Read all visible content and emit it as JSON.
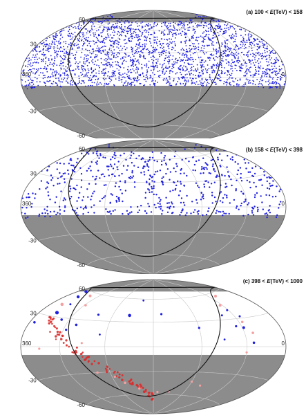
{
  "colors": {
    "background": "#ffffff",
    "mask": "#8c8c8c",
    "grid": "#c8c8c8",
    "outline": "#555555",
    "galactic_plane": "#111111",
    "event_blue": "#2020e0",
    "event_red": "#dd2a2a",
    "event_pink": "#f4a0a0",
    "galactic_red": "#c02020"
  },
  "chart_data": [
    {
      "type": "scatter",
      "projection": "hammer-aitoff",
      "title_parts": {
        "prefix": "(a) 100 < ",
        "var": "E",
        "unit": "(TeV)",
        "suffix": " < 158"
      },
      "lat_labels": [
        "60",
        "30",
        "-30",
        "-60"
      ],
      "lon_labels": [
        "360",
        "0"
      ],
      "fov_dec_range": [
        -10,
        71
      ],
      "marker_color": "blue",
      "n_events": 2600,
      "seed": 11,
      "marker_size": 0.9,
      "grid": true
    },
    {
      "type": "scatter",
      "projection": "hammer-aitoff",
      "title_parts": {
        "prefix": "(b) 158 < ",
        "var": "E",
        "unit": "(TeV)",
        "suffix": " < 398"
      },
      "lat_labels": [
        "60",
        "30",
        "-30",
        "-60"
      ],
      "lon_labels": [
        "360",
        "0"
      ],
      "fov_dec_range": [
        -10,
        71
      ],
      "marker_color": "blue",
      "n_events": 620,
      "seed": 23,
      "marker_size": 1.2,
      "grid": true
    },
    {
      "type": "scatter",
      "projection": "hammer-aitoff",
      "title_parts": {
        "prefix": "(c) 398 < ",
        "var": "E",
        "unit": "(TeV)",
        "suffix": " < 1000"
      },
      "lat_labels": [
        "60",
        "30",
        "-30",
        "-60"
      ],
      "lon_labels": [
        "360",
        "0"
      ],
      "fov_dec_range": [
        -10,
        71
      ],
      "grid": true,
      "events_blue": [
        {
          "ra": 345,
          "dec": 58,
          "s": 2.2
        },
        {
          "ra": 336,
          "dec": 52,
          "s": 2.2
        },
        {
          "ra": 330,
          "dec": 34,
          "s": 2.6
        },
        {
          "ra": 312,
          "dec": 28,
          "s": 1.8
        },
        {
          "ra": 296,
          "dec": 18,
          "s": 1.6
        },
        {
          "ra": 285,
          "dec": 24,
          "s": 1.8
        },
        {
          "ra": 262,
          "dec": 37,
          "s": 1.6
        },
        {
          "ra": 248,
          "dec": 14,
          "s": 1.4
        },
        {
          "ra": 215,
          "dec": 38,
          "s": 2.3
        },
        {
          "ra": 168,
          "dec": 40,
          "s": 1.6
        },
        {
          "ra": 120,
          "dec": 22,
          "s": 1.6
        },
        {
          "ra": 78,
          "dec": 35,
          "s": 1.5
        },
        {
          "ra": 68,
          "dec": 22,
          "s": 1.6
        },
        {
          "ra": 62,
          "dec": 40,
          "s": 1.5
        },
        {
          "ra": 58,
          "dec": 20,
          "s": 2.0
        },
        {
          "ra": 52,
          "dec": 32,
          "s": 1.5
        },
        {
          "ra": 50,
          "dec": 4,
          "s": 1.8
        },
        {
          "ra": 90,
          "dec": 8,
          "s": 1.4
        },
        {
          "ra": 352,
          "dec": 22,
          "s": 1.8
        },
        {
          "ra": 326,
          "dec": 44,
          "s": 1.5
        },
        {
          "ra": 200,
          "dec": 58,
          "s": 1.4
        }
      ],
      "events_pink": [
        {
          "ra": 340,
          "dec": 42,
          "s": 2.3
        },
        {
          "ra": 318,
          "dec": 56,
          "s": 2.0
        },
        {
          "ra": 298,
          "dec": 46,
          "s": 1.8
        },
        {
          "ra": 270,
          "dec": 4,
          "s": 1.6
        },
        {
          "ra": 258,
          "dec": -30,
          "s": 1.8
        },
        {
          "ra": 236,
          "dec": -36,
          "s": 1.6
        },
        {
          "ra": 225,
          "dec": -44,
          "s": 1.8
        },
        {
          "ra": 205,
          "dec": -52,
          "s": 1.8
        },
        {
          "ra": 172,
          "dec": -57,
          "s": 1.6
        },
        {
          "ra": 102,
          "dec": -46,
          "s": 1.6
        },
        {
          "ra": 64,
          "dec": 46,
          "s": 2.0
        },
        {
          "ra": 55,
          "dec": 26,
          "s": 1.8
        },
        {
          "ra": 48,
          "dec": 14,
          "s": 1.8
        },
        {
          "ra": 60,
          "dec": -6,
          "s": 1.6
        },
        {
          "ra": 45,
          "dec": 56,
          "s": 2.0
        },
        {
          "ra": 330,
          "dec": -2,
          "s": 1.6
        },
        {
          "ra": 120,
          "dec": -42,
          "s": 1.6
        },
        {
          "ra": 150,
          "dec": -56,
          "s": 1.6
        }
      ],
      "events_red_cluster_count": 95,
      "seed": 7
    }
  ]
}
